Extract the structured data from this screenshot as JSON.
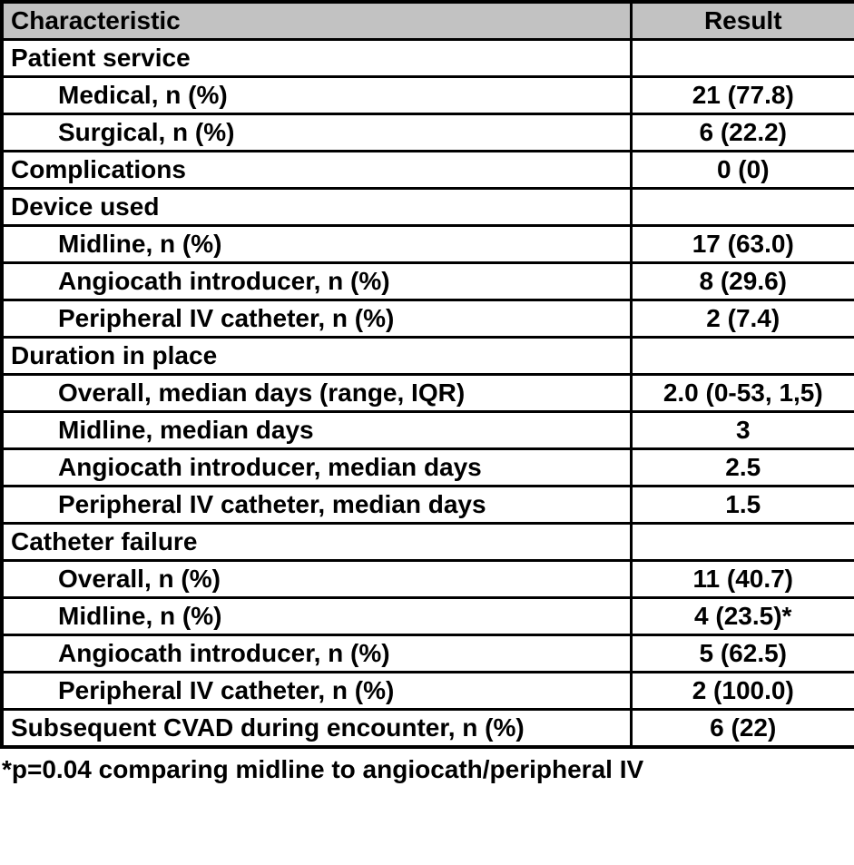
{
  "table": {
    "columns": [
      "Characteristic",
      "Result"
    ],
    "rows": [
      {
        "label": "Patient service",
        "value": ""
      },
      {
        "label": "Medical, n (%)",
        "value": "21 (77.8)"
      },
      {
        "label": "Surgical, n (%)",
        "value": "6 (22.2)"
      },
      {
        "label": "Complications",
        "value": "0 (0)"
      },
      {
        "label": "Device used",
        "value": ""
      },
      {
        "label": "Midline, n (%)",
        "value": "17 (63.0)"
      },
      {
        "label": "Angiocath introducer, n (%)",
        "value": "8 (29.6)"
      },
      {
        "label": "Peripheral IV catheter, n (%)",
        "value": "2 (7.4)"
      },
      {
        "label": "Duration in place",
        "value": ""
      },
      {
        "label": "Overall, median days (range, IQR)",
        "value": "2.0 (0-53, 1,5)"
      },
      {
        "label": "Midline, median days",
        "value": "3"
      },
      {
        "label": "Angiocath introducer, median days",
        "value": "2.5"
      },
      {
        "label": "Peripheral IV catheter, median days",
        "value": "1.5"
      },
      {
        "label": "Catheter failure",
        "value": ""
      },
      {
        "label": "Overall, n (%)",
        "value": "11 (40.7)"
      },
      {
        "label": "Midline, n (%)",
        "value": "4 (23.5)*"
      },
      {
        "label": "Angiocath introducer, n (%)",
        "value": "5 (62.5)"
      },
      {
        "label": "Peripheral IV catheter, n (%)",
        "value": "2 (100.0)"
      },
      {
        "label": "Subsequent CVAD during encounter, n (%)",
        "value": "6 (22)"
      }
    ],
    "footnote": "*p=0.04 comparing midline to angiocath/peripheral IV"
  },
  "colors": {
    "header_bg": "#c2c2c2",
    "border": "#000000",
    "text": "#000000",
    "background": "#ffffff"
  }
}
